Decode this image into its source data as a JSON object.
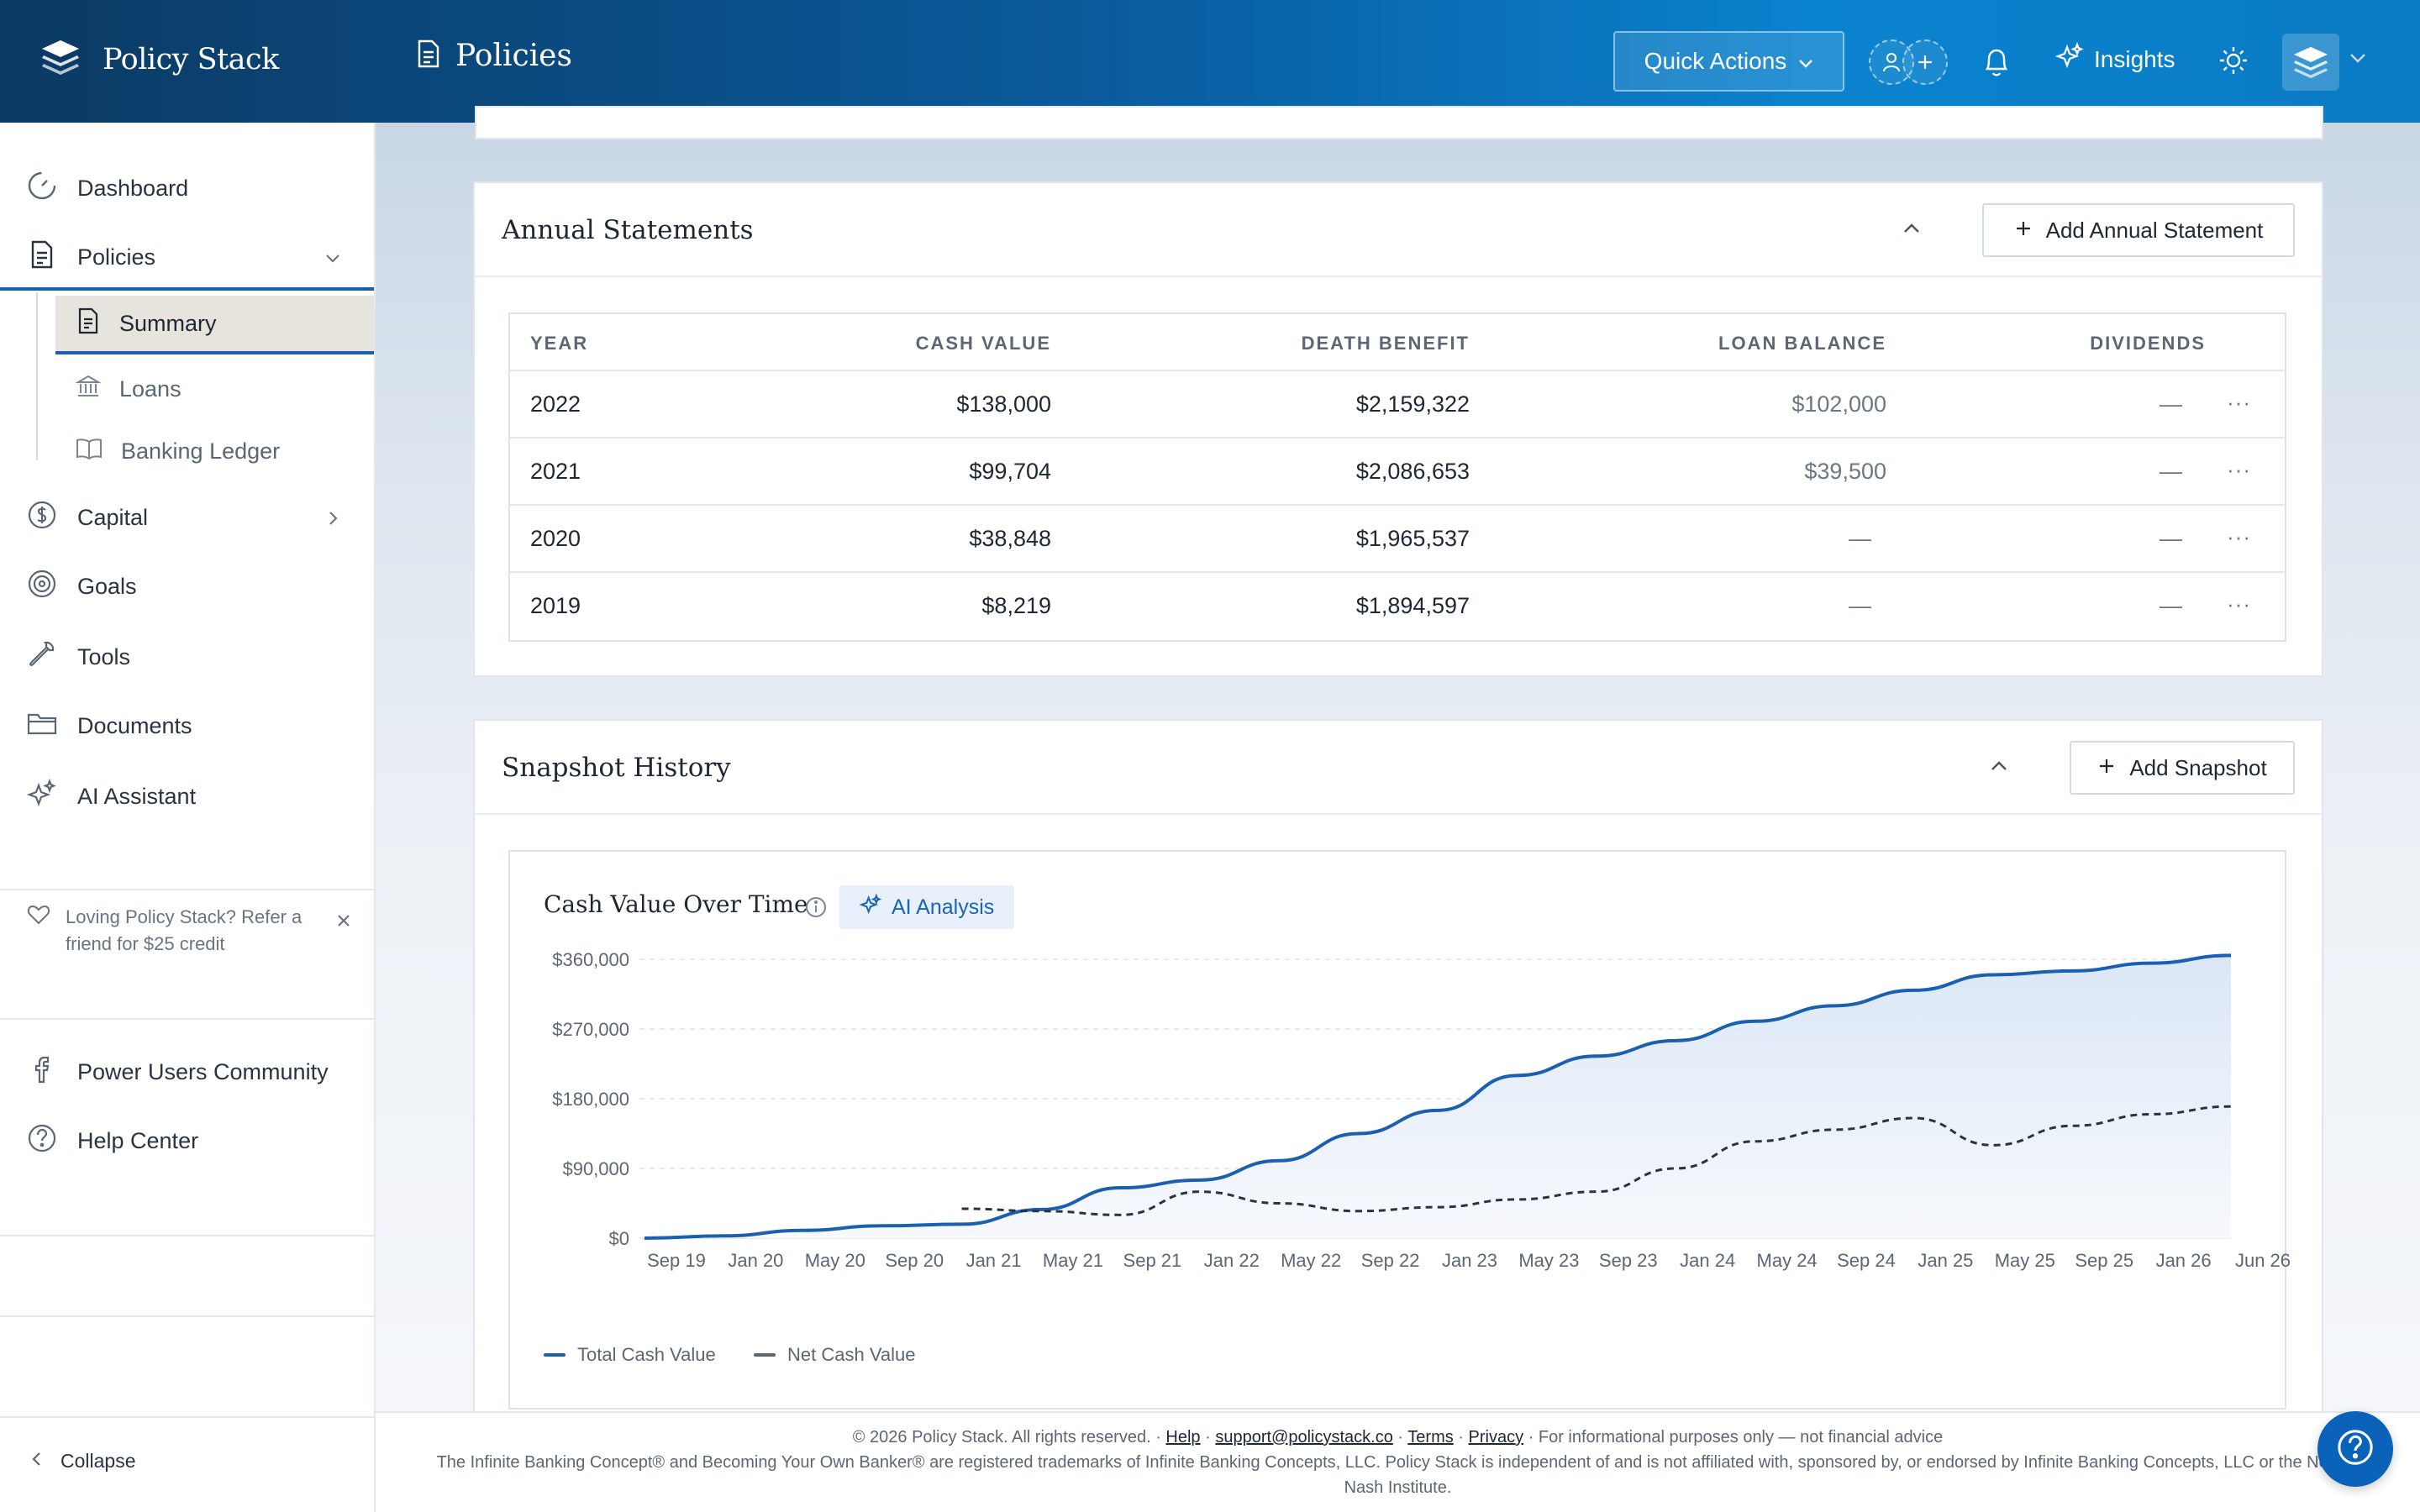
{
  "header": {
    "brand": "Policy Stack",
    "page_title": "Policies",
    "quick_actions": "Quick Actions",
    "insights": "Insights"
  },
  "sidebar": {
    "items": [
      {
        "label": "Dashboard",
        "icon": "gauge-icon"
      },
      {
        "label": "Policies",
        "icon": "document-icon"
      },
      {
        "label": "Capital",
        "icon": "dollar-circle-icon"
      },
      {
        "label": "Goals",
        "icon": "target-icon"
      },
      {
        "label": "Tools",
        "icon": "wrench-icon"
      },
      {
        "label": "Documents",
        "icon": "folder-icon"
      },
      {
        "label": "AI Assistant",
        "icon": "sparkles-icon"
      }
    ],
    "sub_items": [
      {
        "label": "Summary",
        "icon": "document-icon"
      },
      {
        "label": "Loans",
        "icon": "bank-icon"
      },
      {
        "label": "Banking Ledger",
        "icon": "book-icon"
      }
    ],
    "promo": "Loving Policy Stack? Refer a friend for $25 credit",
    "community": "Power Users Community",
    "help_center": "Help Center",
    "collapse": "Collapse"
  },
  "annual": {
    "title": "Annual Statements",
    "add_button": "Add Annual Statement",
    "columns": [
      "YEAR",
      "CASH VALUE",
      "DEATH BENEFIT",
      "LOAN BALANCE",
      "DIVIDENDS"
    ],
    "rows": [
      {
        "year": "2022",
        "cash": "$138,000",
        "death": "$2,159,322",
        "loan": "$102,000",
        "div": "—"
      },
      {
        "year": "2021",
        "cash": "$99,704",
        "death": "$2,086,653",
        "loan": "$39,500",
        "div": "—"
      },
      {
        "year": "2020",
        "cash": "$38,848",
        "death": "$1,965,537",
        "loan": "—",
        "div": "—"
      },
      {
        "year": "2019",
        "cash": "$8,219",
        "death": "$1,894,597",
        "loan": "—",
        "div": "—"
      }
    ],
    "more": "···"
  },
  "snapshot": {
    "title": "Snapshot History",
    "add_button": "Add Snapshot",
    "chart_title": "Cash Value Over Time",
    "ai_analysis": "AI Analysis"
  },
  "chart_data": {
    "type": "area",
    "title": "Cash Value Over Time",
    "yticks": [
      "$360,000",
      "$270,000",
      "$180,000",
      "$90,000",
      "$0"
    ],
    "ylim": [
      0,
      360000
    ],
    "categories": [
      "Sep 19",
      "Jan 20",
      "May 20",
      "Sep 20",
      "Jan 21",
      "May 21",
      "Sep 21",
      "Jan 22",
      "May 22",
      "Sep 22",
      "Jan 23",
      "May 23",
      "Sep 23",
      "Jan 24",
      "May 24",
      "Sep 24",
      "Jan 25",
      "May 25",
      "Sep 25",
      "Jan 26",
      "Jun 26"
    ],
    "series": [
      {
        "name": "Total Cash Value",
        "color": "#1b5fb0",
        "style": "solid",
        "values": [
          0,
          3000,
          10000,
          16000,
          18000,
          37000,
          65000,
          75000,
          100000,
          135000,
          165000,
          210000,
          235000,
          255000,
          280000,
          300000,
          320000,
          340000,
          345000,
          355000,
          365000
        ]
      },
      {
        "name": "Net Cash Value",
        "color": "#2a3340",
        "style": "dashed",
        "values": [
          null,
          null,
          null,
          null,
          38000,
          35000,
          30000,
          60000,
          45000,
          35000,
          40000,
          50000,
          60000,
          90000,
          125000,
          140000,
          155000,
          120000,
          145000,
          160000,
          170000
        ]
      }
    ],
    "grid": true,
    "legend": "bottom-left"
  },
  "footer": {
    "line1_prefix": "© 2026 Policy Stack. All rights reserved. · ",
    "help": "Help",
    "sep1": " · ",
    "email": "support@policystack.co",
    "sep2": " · ",
    "terms": "Terms",
    "sep3": " · ",
    "privacy": "Privacy",
    "line1_suffix": " · For informational purposes only — not financial advice",
    "line2": "The Infinite Banking Concept® and Becoming Your Own Banker® are registered trademarks of Infinite Banking Concepts, LLC. Policy Stack is independent of and is not affiliated with, sponsored by, or endorsed by Infinite Banking Concepts, LLC or the Nelson Nash Institute."
  }
}
